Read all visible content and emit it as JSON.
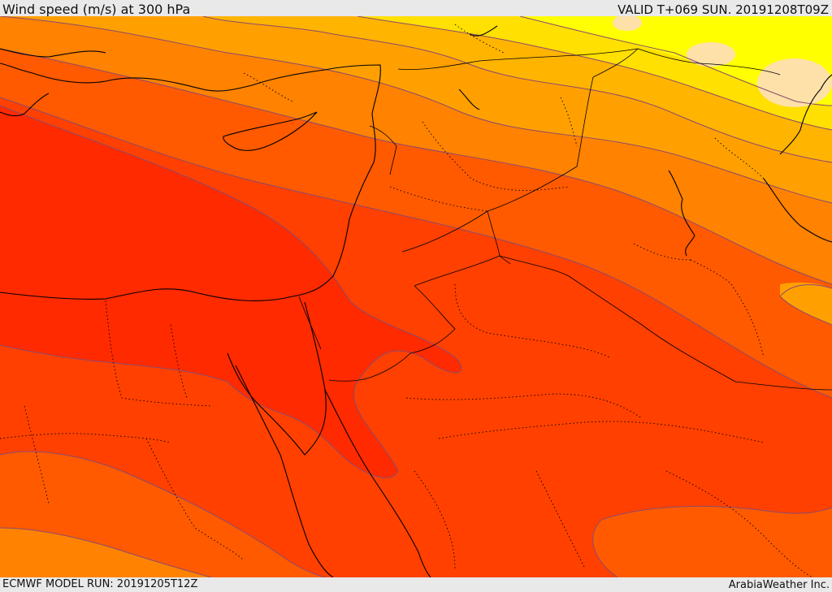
{
  "header": {
    "title": "Wind speed (m/s) at 300 hPa",
    "valid_time": "VALID T+069 SUN. 20191208T09Z"
  },
  "footer": {
    "model_run": "ECMWF MODEL RUN: 20191205T12Z",
    "credit": "ArabiaWeather Inc."
  },
  "colors": {
    "very_low": "#fde1a8",
    "low": "#ffff00",
    "low_mid": "#ffe000",
    "mid": "#ffb400",
    "mid_high": "#ffa000",
    "high": "#ff8200",
    "higher": "#ff5a00",
    "highest": "#ff4000",
    "peak": "#ff2a00",
    "contour": "#8b4a6e",
    "coast": "#000000"
  }
}
